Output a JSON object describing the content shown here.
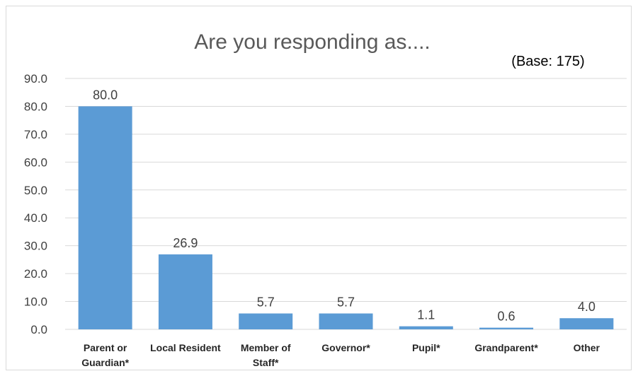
{
  "chart_data": {
    "type": "bar",
    "title": "Are you responding as....",
    "note": "(Base: 175)",
    "categories": [
      "Parent or Guardian*",
      "Local Resident",
      "Member of Staff*",
      "Governor*",
      "Pupil*",
      "Grandparent*",
      "Other"
    ],
    "category_lines": [
      [
        "Parent or",
        "Guardian*"
      ],
      [
        "Local Resident"
      ],
      [
        "Member of",
        "Staff*"
      ],
      [
        "Governor*"
      ],
      [
        "Pupil*"
      ],
      [
        "Grandparent*"
      ],
      [
        "Other"
      ]
    ],
    "values": [
      80.0,
      26.9,
      5.7,
      5.7,
      1.1,
      0.6,
      4.0
    ],
    "data_labels": [
      "80.0",
      "26.9",
      "5.7",
      "5.7",
      "1.1",
      "0.6",
      "4.0"
    ],
    "yticks": [
      "0.0",
      "10.0",
      "20.0",
      "30.0",
      "40.0",
      "50.0",
      "60.0",
      "70.0",
      "80.0",
      "90.0"
    ],
    "ylim": [
      0,
      90
    ],
    "xlabel": "",
    "ylabel": "",
    "grid": true,
    "legend": "none",
    "bar_color": "#5b9bd5"
  }
}
